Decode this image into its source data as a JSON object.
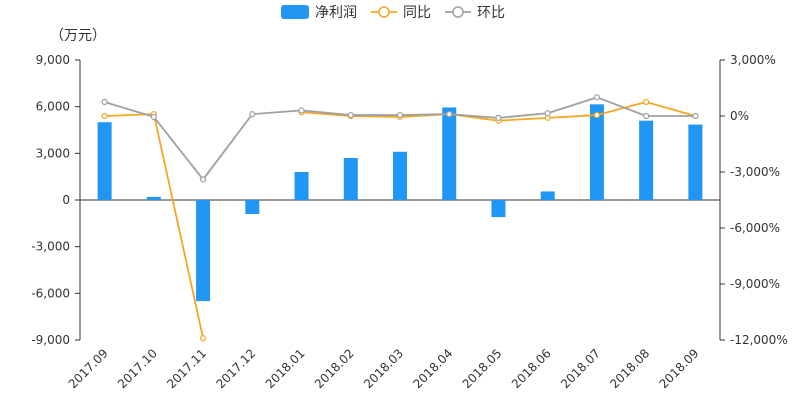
{
  "chart_data": {
    "type": "bar+line",
    "unit_label": "（万元）",
    "categories": [
      "2017.09",
      "2017.10",
      "2017.11",
      "2017.12",
      "2018.01",
      "2018.02",
      "2018.03",
      "2018.04",
      "2018.05",
      "2018.06",
      "2018.07",
      "2018.08",
      "2018.09"
    ],
    "left_axis": {
      "ylim": [
        -9000,
        9000
      ],
      "ticks": [
        9000,
        6000,
        3000,
        0,
        -3000,
        -6000,
        -9000
      ],
      "tick_labels": [
        "9,000",
        "6,000",
        "3,000",
        "0",
        "-3,000",
        "-6,000",
        "-9,000"
      ]
    },
    "right_axis": {
      "ylim": [
        -12000,
        3000
      ],
      "ticks": [
        3000,
        0,
        -3000,
        -6000,
        -9000,
        -12000
      ],
      "tick_labels": [
        "3,000%",
        "0%",
        "-3,000%",
        "-6,000%",
        "-9,000%",
        "-12,000%"
      ]
    },
    "series": [
      {
        "name": "净利润",
        "kind": "bar",
        "axis": "left",
        "color": "#2196F3",
        "values": [
          5000,
          200,
          -6500,
          -900,
          1800,
          2700,
          3100,
          5950,
          -1100,
          550,
          6150,
          5100,
          4850
        ]
      },
      {
        "name": "同比",
        "kind": "line",
        "axis": "right",
        "color": "#F5A623",
        "values": [
          0,
          100,
          -11900,
          null,
          200,
          0,
          -50,
          100,
          -250,
          -100,
          50,
          750,
          0
        ]
      },
      {
        "name": "环比",
        "kind": "line",
        "axis": "right",
        "color": "#A0A0A0",
        "values": [
          750,
          -50,
          -3400,
          100,
          300,
          50,
          50,
          100,
          -100,
          150,
          1000,
          0,
          0
        ]
      }
    ],
    "grid": false,
    "legend_position": "top-center"
  }
}
